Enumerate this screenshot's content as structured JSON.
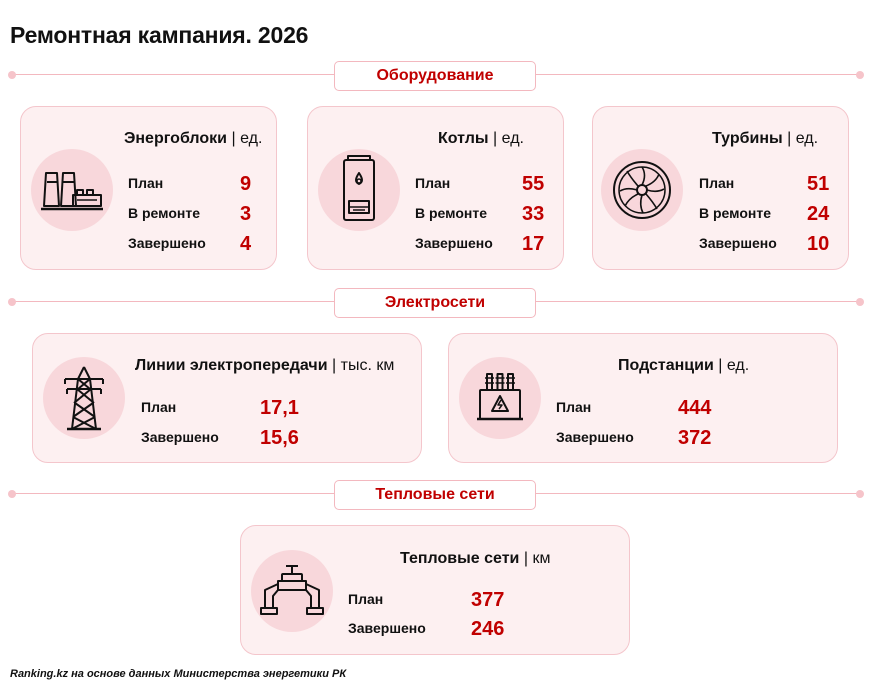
{
  "title": "Ремонтная кампания. 2026",
  "sections": {
    "equipment": "Оборудование",
    "grids": "Электросети",
    "heat": "Тепловые сети"
  },
  "separator": "|",
  "cards": {
    "power_units": {
      "name": "Энергоблоки",
      "unit": "ед.",
      "icon": "power-plant-icon",
      "rows": [
        {
          "label": "План",
          "value": "9"
        },
        {
          "label": "В ремонте",
          "value": "3"
        },
        {
          "label": "Завершено",
          "value": "4"
        }
      ]
    },
    "boilers": {
      "name": "Котлы",
      "unit": "ед.",
      "icon": "boiler-icon",
      "rows": [
        {
          "label": "План",
          "value": "55"
        },
        {
          "label": "В ремонте",
          "value": "33"
        },
        {
          "label": "Завершено",
          "value": "17"
        }
      ]
    },
    "turbines": {
      "name": "Турбины",
      "unit": "ед.",
      "icon": "turbine-icon",
      "rows": [
        {
          "label": "План",
          "value": "51"
        },
        {
          "label": "В ремонте",
          "value": "24"
        },
        {
          "label": "Завершено",
          "value": "10"
        }
      ]
    },
    "lines": {
      "name": "Линии электропередачи",
      "unit": "тыс. км",
      "icon": "transmission-tower-icon",
      "rows": [
        {
          "label": "План",
          "value": "17,1"
        },
        {
          "label": "Завершено",
          "value": "15,6"
        }
      ]
    },
    "substations": {
      "name": "Подстанции",
      "unit": "ед.",
      "icon": "transformer-icon",
      "rows": [
        {
          "label": "План",
          "value": "444"
        },
        {
          "label": "Завершено",
          "value": "372"
        }
      ]
    },
    "heat_networks": {
      "name": "Тепловые сети",
      "unit": "км",
      "icon": "pipe-valve-icon",
      "rows": [
        {
          "label": "План",
          "value": "377"
        },
        {
          "label": "Завершено",
          "value": "246"
        }
      ]
    }
  },
  "source": "Ranking.kz на основе данных Министерства энергетики РК",
  "colors": {
    "accent": "#c00000",
    "card_bg": "#fdf0f1",
    "card_border": "#f4c6cc",
    "icon_bg": "#f8d7db"
  }
}
